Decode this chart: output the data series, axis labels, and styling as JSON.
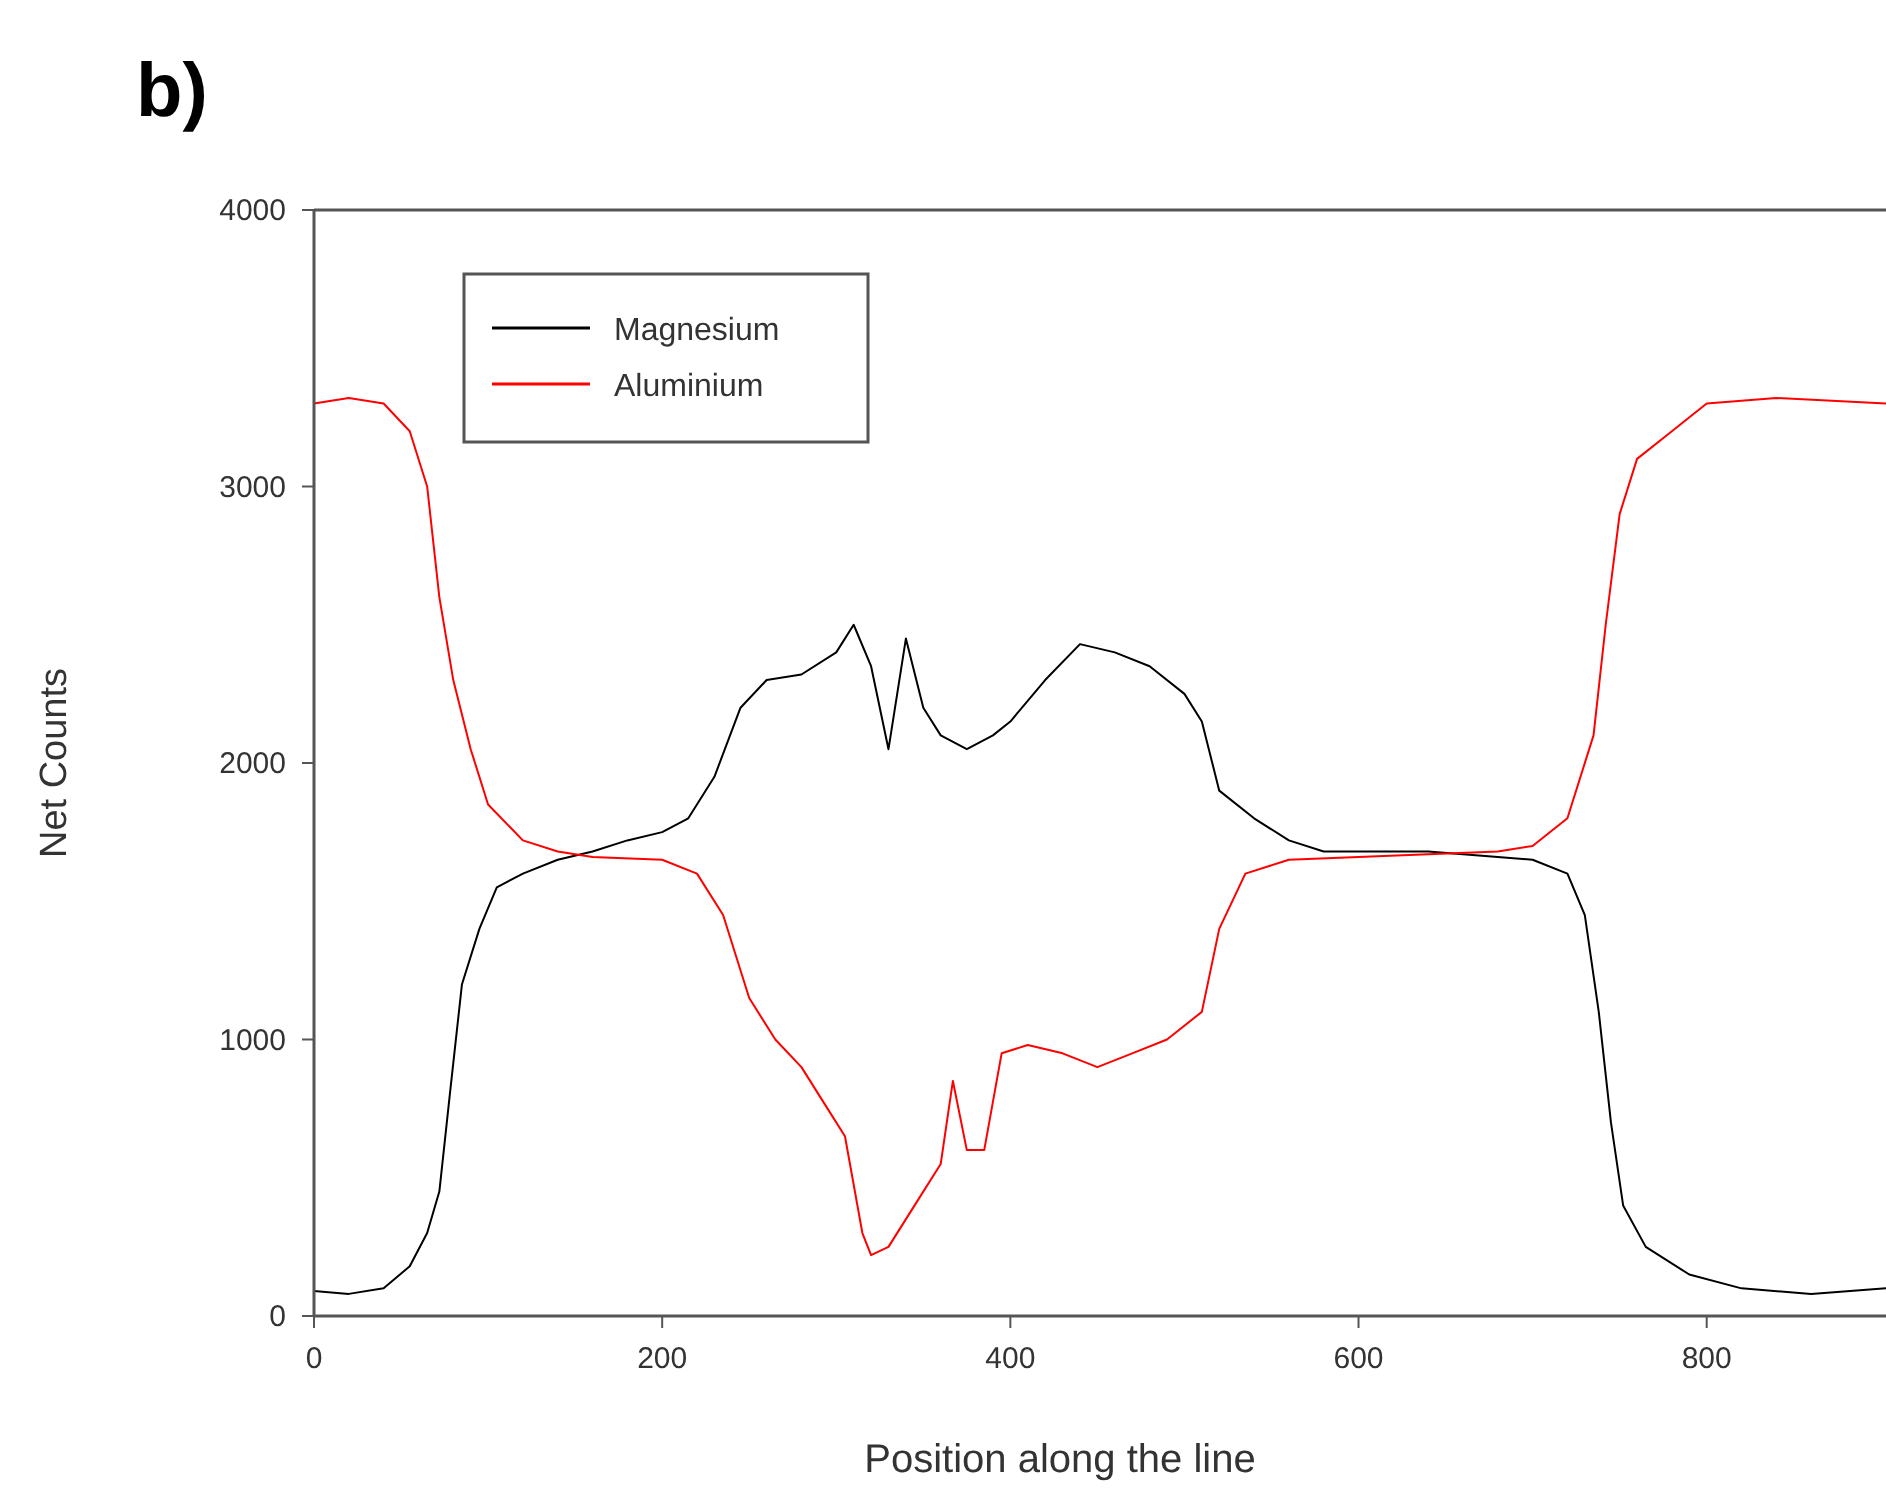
{
  "chart_data": {
    "type": "line",
    "title": "b)",
    "xlabel": "Position along the line",
    "ylabel": "Net Counts",
    "xlim": [
      0,
      903
    ],
    "xticks": [
      0,
      200,
      400,
      600,
      800
    ],
    "ylim": [
      0,
      4000
    ],
    "yticks": [
      0,
      1000,
      2000,
      3000,
      4000
    ],
    "legend": "top left",
    "grid": false,
    "marker": "none",
    "line_style": "solid",
    "series": [
      {
        "name": "Magnesium",
        "color": "#000000",
        "x": [
          0,
          20,
          40,
          55,
          65,
          72,
          78,
          85,
          95,
          105,
          120,
          140,
          160,
          180,
          200,
          215,
          230,
          245,
          260,
          280,
          300,
          310,
          320,
          330,
          340,
          350,
          360,
          375,
          390,
          400,
          420,
          440,
          460,
          480,
          500,
          510,
          520,
          540,
          560,
          580,
          600,
          640,
          680,
          700,
          720,
          730,
          738,
          745,
          752,
          765,
          790,
          820,
          860,
          903
        ],
        "values": [
          90,
          80,
          100,
          180,
          300,
          450,
          800,
          1200,
          1400,
          1550,
          1600,
          1650,
          1680,
          1720,
          1750,
          1800,
          1950,
          2200,
          2300,
          2320,
          2400,
          2500,
          2350,
          2050,
          2450,
          2200,
          2100,
          2050,
          2100,
          2150,
          2300,
          2430,
          2400,
          2350,
          2250,
          2150,
          1900,
          1800,
          1720,
          1680,
          1680,
          1680,
          1660,
          1650,
          1600,
          1450,
          1100,
          700,
          400,
          250,
          150,
          100,
          80,
          100
        ]
      },
      {
        "name": "Aluminium",
        "color": "#ff0000",
        "x": [
          0,
          20,
          40,
          55,
          65,
          72,
          80,
          90,
          100,
          120,
          140,
          160,
          200,
          220,
          235,
          250,
          265,
          280,
          295,
          305,
          315,
          320,
          330,
          345,
          360,
          367,
          375,
          385,
          395,
          410,
          430,
          450,
          470,
          490,
          510,
          520,
          535,
          560,
          600,
          640,
          680,
          700,
          720,
          735,
          742,
          750,
          760,
          780,
          800,
          840,
          903
        ],
        "values": [
          3300,
          3320,
          3300,
          3200,
          3000,
          2600,
          2300,
          2050,
          1850,
          1720,
          1680,
          1660,
          1650,
          1600,
          1450,
          1150,
          1000,
          900,
          750,
          650,
          300,
          220,
          250,
          400,
          550,
          850,
          600,
          600,
          950,
          980,
          950,
          900,
          950,
          1000,
          1100,
          1400,
          1600,
          1650,
          1660,
          1670,
          1680,
          1700,
          1800,
          2100,
          2500,
          2900,
          3100,
          3200,
          3300,
          3320,
          3300
        ]
      }
    ]
  }
}
